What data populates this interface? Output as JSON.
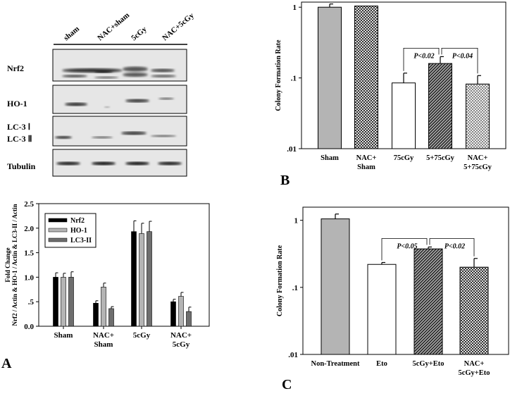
{
  "panel_labels": {
    "a": "A",
    "b": "B",
    "c": "C"
  },
  "blot": {
    "lanes": [
      "sham",
      "NAC+sham",
      "5cGy",
      "NAC+5cGy"
    ],
    "rows": [
      "Nrf2",
      "HO-1",
      "LC-3 Ⅰ",
      "LC-3 Ⅱ",
      "Tubulin"
    ]
  },
  "chart_data": [
    {
      "type": "bar",
      "panel": "A",
      "ylabel_line1": "Fold Change",
      "ylabel_line2": "Nrf2 / Actin & HO-1 / Actin & LC3-II / Actin",
      "categories": [
        [
          "Sham"
        ],
        [
          "NAC+",
          "Sham"
        ],
        [
          "5cGy"
        ],
        [
          "NAC+",
          "5cGy"
        ]
      ],
      "ylim": [
        0,
        2.5
      ],
      "yticks": [
        0,
        0.5,
        1.0,
        1.5,
        2.0,
        2.5
      ],
      "ytick_labels": [
        "0.0",
        ".5",
        "1.0",
        "1.5",
        "2.0",
        "2.5"
      ],
      "legend_position": "top-left",
      "series": [
        {
          "name": "Nrf2",
          "color": "#000000",
          "values": [
            1.0,
            0.47,
            1.93,
            0.5
          ],
          "errors": [
            0.09,
            0.05,
            0.22,
            0.05
          ]
        },
        {
          "name": "HO-1",
          "color": "#b4b4b4",
          "values": [
            1.0,
            0.8,
            1.89,
            0.61
          ],
          "errors": [
            0.08,
            0.08,
            0.21,
            0.08
          ]
        },
        {
          "name": "LC3-II",
          "color": "#6e6e6e",
          "values": [
            1.0,
            0.36,
            1.93,
            0.3
          ],
          "errors": [
            0.11,
            0.04,
            0.21,
            0.09
          ]
        }
      ]
    },
    {
      "type": "bar",
      "panel": "B",
      "ylabel": "Colony Formation Rate",
      "yscale": "log",
      "ylim": [
        0.01,
        1.18
      ],
      "yticks": [
        0.01,
        0.1,
        1
      ],
      "ytick_labels": [
        ".01",
        ".1",
        "1"
      ],
      "categories": [
        [
          "Sham"
        ],
        [
          "NAC+",
          "Sham"
        ],
        [
          "75cGy"
        ],
        [
          "5+75cGy"
        ],
        [
          "NAC+",
          "5+75cGy"
        ]
      ],
      "values": [
        1.0,
        1.04,
        0.085,
        0.16,
        0.082
      ],
      "errors": [
        0.11,
        0.0,
        0.032,
        0.04,
        0.026
      ],
      "fills": [
        "solid-gray",
        "crosshatch",
        "white",
        "dark-hatch",
        "light-crosshatch"
      ],
      "annotations": [
        {
          "text": "P<0.02",
          "from": 2,
          "to": 3
        },
        {
          "text": "P<0.04",
          "from": 3,
          "to": 4
        }
      ]
    },
    {
      "type": "bar",
      "panel": "C",
      "ylabel": "Colony Formation Rate",
      "yscale": "log",
      "ylim": [
        0.01,
        1.57
      ],
      "yticks": [
        0.01,
        0.1,
        1
      ],
      "ytick_labels": [
        ".01",
        ".1",
        "1"
      ],
      "categories": [
        [
          "Non-Treatment"
        ],
        [
          "Eto"
        ],
        [
          "5cGy+Eto"
        ],
        [
          "NAC+",
          "5cGy+Eto"
        ]
      ],
      "values": [
        1.05,
        0.22,
        0.375,
        0.2
      ],
      "errors": [
        0.19,
        0.015,
        0.025,
        0.07
      ],
      "fills": [
        "solid-gray",
        "white",
        "dark-hatch",
        "crosshatch"
      ],
      "annotations": [
        {
          "text": "P<0.05",
          "from": 1,
          "to": 2
        },
        {
          "text": "P<0.02",
          "from": 2,
          "to": 3
        }
      ]
    }
  ]
}
